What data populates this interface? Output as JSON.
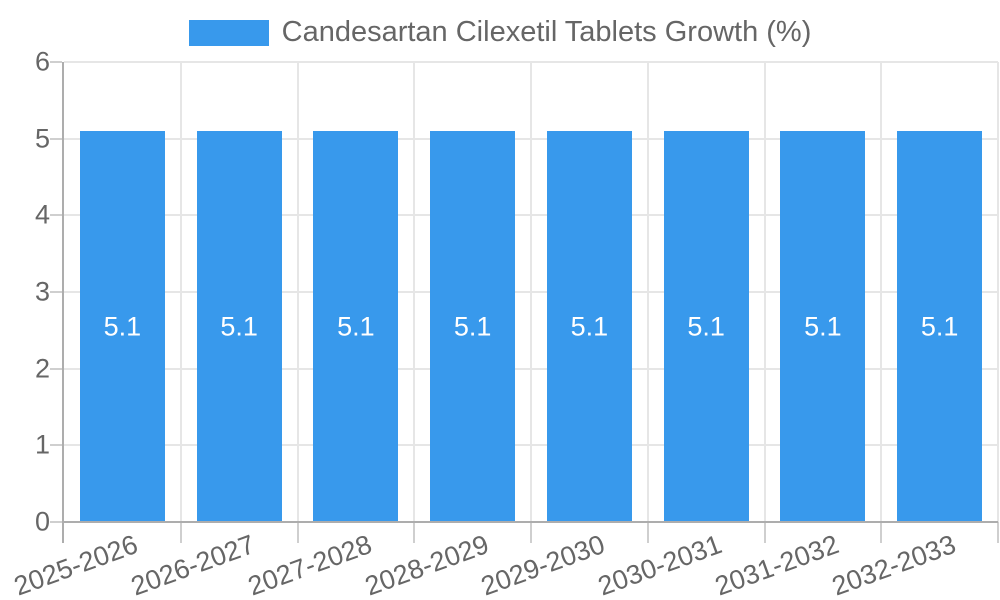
{
  "chart_data": {
    "type": "bar",
    "title": "Candesartan Cilexetil Tablets Growth (%)",
    "categories": [
      "2025-2026",
      "2026-2027",
      "2027-2028",
      "2028-2029",
      "2029-2030",
      "2030-2031",
      "2031-2032",
      "2032-2033"
    ],
    "values": [
      5.1,
      5.1,
      5.1,
      5.1,
      5.1,
      5.1,
      5.1,
      5.1
    ],
    "value_labels": [
      "5.1",
      "5.1",
      "5.1",
      "5.1",
      "5.1",
      "5.1",
      "5.1",
      "5.1"
    ],
    "xlabel": "",
    "ylabel": "",
    "ylim": [
      0,
      6
    ],
    "yticks": [
      "0",
      "1",
      "2",
      "3",
      "4",
      "5",
      "6"
    ],
    "grid": true,
    "legend_position": "top",
    "colors": {
      "bar": "#3899EC",
      "bar_label_text": "#FFFFFF",
      "tick_text": "#666666",
      "legend_text": "#666666",
      "gridline": "#E6E6E6",
      "tick_mark": "#CFCFCF",
      "axis_line": "#ADADAD",
      "background": "#FFFFFF"
    }
  }
}
